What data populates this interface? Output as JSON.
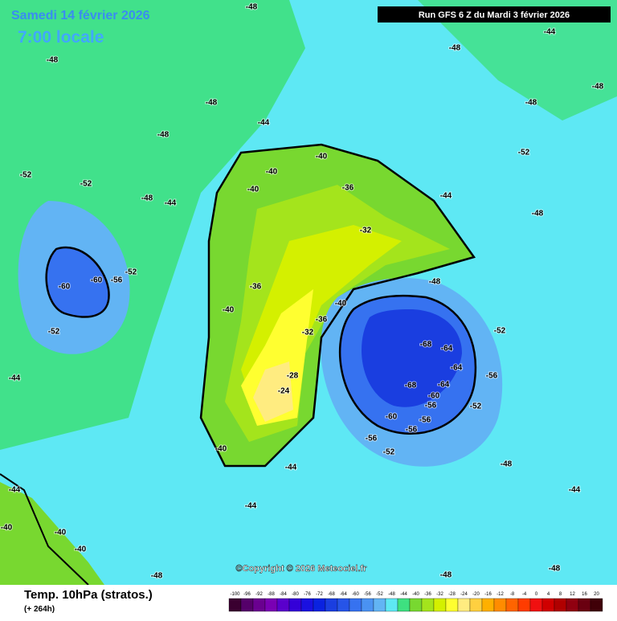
{
  "header": {
    "date": "Samedi 14 février 2026",
    "time": "7:00 locale",
    "run": "Run GFS 6 Z du Mardi 3 février 2026"
  },
  "footer": {
    "title": "Temp. 10hPa (stratos.)",
    "lead": "(+ 264h)",
    "copyright": "©Copyright © 2026 Meteociel.fr"
  },
  "colorbar": {
    "labels": [
      -100,
      -96,
      -92,
      -88,
      -84,
      -80,
      -76,
      -72,
      -68,
      -64,
      -60,
      -56,
      -52,
      -48,
      -44,
      -40,
      -36,
      -32,
      -28,
      -24,
      -20,
      -16,
      -12,
      -8,
      -4,
      0,
      4,
      8,
      12,
      16,
      20
    ],
    "colors": [
      "#3a0030",
      "#55006a",
      "#6a0090",
      "#7a00b4",
      "#5a00cc",
      "#3400d8",
      "#1a10e0",
      "#0a22e0",
      "#1a3ee0",
      "#2654e8",
      "#3672f0",
      "#4a92f2",
      "#62b4f4",
      "#5ee8f4",
      "#3ee080",
      "#78d830",
      "#a4e41c",
      "#d4f000",
      "#ffff30",
      "#ffec80",
      "#ffd040",
      "#ffb000",
      "#ff8c00",
      "#ff6400",
      "#ff3c00",
      "#f01010",
      "#d00000",
      "#b00000",
      "#900010",
      "#6a0010",
      "#400008"
    ]
  },
  "map": {
    "contour_labels": [
      -48,
      -48,
      -48,
      -48,
      -52,
      -52,
      -48,
      -44,
      -60,
      -60,
      -56,
      -52,
      -52,
      -44,
      -40,
      -40,
      -40,
      -36,
      -44,
      -44,
      -32,
      -36,
      -40,
      -40,
      -36,
      -32,
      -28,
      -24,
      -40,
      -44,
      -68,
      -64,
      -64,
      -68,
      -64,
      -60,
      -56,
      -56,
      -60,
      -56,
      -56,
      -52,
      -52,
      -56,
      -52,
      -48,
      -52,
      -48,
      -48,
      -48,
      -44,
      -48,
      -44,
      -40,
      -40,
      -40,
      -44,
      -48,
      -48,
      -44,
      -48,
      -48
    ]
  }
}
